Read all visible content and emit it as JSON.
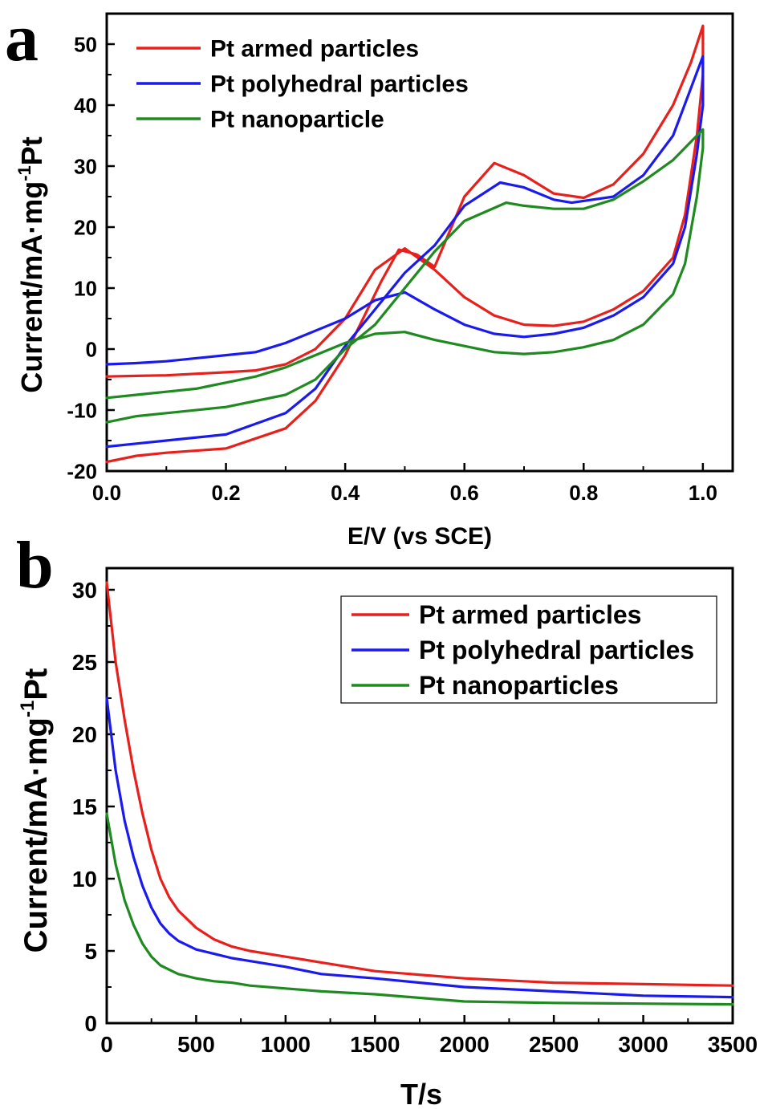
{
  "chart_data": [
    {
      "panel_label": "a",
      "type": "line",
      "xlabel": "E/V (vs SCE)",
      "ylabel": "Current/mA·mg",
      "ylabel_sup": "-1",
      "ylabel_tail": "Pt",
      "xlim": [
        0.0,
        1.05
      ],
      "ylim": [
        -20,
        55
      ],
      "x_ticks": [
        0.0,
        0.2,
        0.4,
        0.6,
        0.8,
        1.0
      ],
      "x_tick_labels": [
        "0.0",
        "0.2",
        "0.4",
        "0.6",
        "0.8",
        "1.0"
      ],
      "y_ticks": [
        -20,
        -10,
        0,
        10,
        20,
        30,
        40,
        50
      ],
      "y_tick_labels": [
        "-20",
        "-10",
        "0",
        "10",
        "20",
        "30",
        "40",
        "50"
      ],
      "legend_position": "top-left",
      "legend_box": false,
      "series": [
        {
          "name": "Pt armed particles",
          "color": "#e8201c",
          "x": [
            0.0,
            0.05,
            0.1,
            0.2,
            0.3,
            0.35,
            0.4,
            0.43,
            0.46,
            0.49,
            0.52,
            0.55,
            0.6,
            0.65,
            0.7,
            0.75,
            0.8,
            0.85,
            0.9,
            0.95,
            0.98,
            1.0,
            1.0,
            0.99,
            0.97,
            0.95,
            0.9,
            0.85,
            0.8,
            0.75,
            0.7,
            0.65,
            0.6,
            0.55,
            0.5,
            0.45,
            0.4,
            0.35,
            0.3,
            0.25,
            0.2,
            0.1,
            0.05,
            0.0
          ],
          "y": [
            -18.5,
            -17.5,
            -17.0,
            -16.3,
            -13.0,
            -8.5,
            -1.0,
            5.0,
            11.0,
            16.3,
            15.5,
            13.5,
            25.0,
            30.5,
            28.5,
            25.5,
            24.8,
            27.0,
            32.0,
            40.0,
            47.0,
            53.0,
            45.0,
            35.0,
            22.0,
            15.0,
            9.5,
            6.5,
            4.5,
            3.8,
            4.0,
            5.5,
            8.5,
            13.0,
            16.5,
            13.0,
            5.0,
            0.0,
            -2.5,
            -3.5,
            -3.8,
            -4.3,
            -4.4,
            -4.5
          ]
        },
        {
          "name": "Pt polyhedral particles",
          "color": "#1a1aee",
          "x": [
            0.0,
            0.05,
            0.1,
            0.2,
            0.3,
            0.35,
            0.4,
            0.45,
            0.5,
            0.55,
            0.6,
            0.66,
            0.7,
            0.75,
            0.78,
            0.85,
            0.9,
            0.95,
            1.0,
            1.0,
            0.99,
            0.97,
            0.95,
            0.9,
            0.85,
            0.8,
            0.75,
            0.7,
            0.65,
            0.6,
            0.55,
            0.5,
            0.45,
            0.4,
            0.35,
            0.3,
            0.25,
            0.2,
            0.1,
            0.05,
            0.0
          ],
          "y": [
            -16.0,
            -15.5,
            -15.0,
            -14.0,
            -10.5,
            -6.5,
            0.5,
            6.5,
            12.5,
            17.0,
            23.5,
            27.3,
            26.5,
            24.5,
            24.0,
            25.0,
            28.5,
            35.0,
            48.0,
            40.0,
            32.0,
            20.0,
            14.0,
            8.5,
            5.5,
            3.5,
            2.5,
            2.0,
            2.5,
            4.0,
            6.5,
            9.3,
            8.0,
            5.0,
            3.0,
            1.0,
            -0.5,
            -1.0,
            -2.0,
            -2.3,
            -2.5
          ]
        },
        {
          "name": "Pt nanoparticle",
          "color": "#1f8a1f",
          "x": [
            0.0,
            0.05,
            0.1,
            0.2,
            0.3,
            0.35,
            0.4,
            0.45,
            0.5,
            0.55,
            0.6,
            0.67,
            0.7,
            0.75,
            0.8,
            0.85,
            0.9,
            0.95,
            1.0,
            1.0,
            0.99,
            0.97,
            0.95,
            0.9,
            0.85,
            0.8,
            0.75,
            0.7,
            0.65,
            0.6,
            0.55,
            0.5,
            0.45,
            0.4,
            0.35,
            0.3,
            0.25,
            0.2,
            0.15,
            0.1,
            0.05,
            0.0
          ],
          "y": [
            -12.0,
            -11.0,
            -10.5,
            -9.5,
            -7.5,
            -5.0,
            0.0,
            4.0,
            10.0,
            16.0,
            21.0,
            24.0,
            23.5,
            23.0,
            23.0,
            24.5,
            27.5,
            31.0,
            36.0,
            33.0,
            25.0,
            14.0,
            9.0,
            4.0,
            1.5,
            0.3,
            -0.5,
            -0.8,
            -0.5,
            0.5,
            1.5,
            2.8,
            2.5,
            1.0,
            -1.0,
            -3.0,
            -4.5,
            -5.5,
            -6.5,
            -7.0,
            -7.5,
            -8.0
          ]
        }
      ]
    },
    {
      "panel_label": "b",
      "type": "line",
      "xlabel": "T/s",
      "ylabel": "Current/mA·mg",
      "ylabel_sup": "-1",
      "ylabel_tail": "Pt",
      "xlim": [
        0,
        3500
      ],
      "ylim": [
        0,
        31.5
      ],
      "x_ticks": [
        0,
        500,
        1000,
        1500,
        2000,
        2500,
        3000,
        3500
      ],
      "x_tick_labels": [
        "0",
        "500",
        "1000",
        "1500",
        "2000",
        "2500",
        "3000",
        "3500"
      ],
      "y_ticks": [
        0,
        5,
        10,
        15,
        20,
        25,
        30
      ],
      "y_tick_labels": [
        "0",
        "5",
        "10",
        "15",
        "20",
        "25",
        "30"
      ],
      "legend_position": "top-right",
      "legend_box": true,
      "series": [
        {
          "name": "Pt armed particles",
          "color": "#e8201c",
          "x": [
            0,
            50,
            100,
            150,
            200,
            250,
            300,
            350,
            400,
            500,
            600,
            700,
            800,
            1000,
            1200,
            1500,
            2000,
            2500,
            3000,
            3500
          ],
          "y": [
            30.5,
            25.0,
            21.0,
            17.5,
            14.5,
            12.0,
            10.0,
            8.7,
            7.8,
            6.6,
            5.8,
            5.3,
            5.0,
            4.6,
            4.2,
            3.6,
            3.1,
            2.8,
            2.7,
            2.6
          ]
        },
        {
          "name": "Pt polyhedral particles",
          "color": "#1a1aee",
          "x": [
            0,
            50,
            100,
            150,
            200,
            250,
            300,
            350,
            400,
            500,
            600,
            700,
            800,
            1000,
            1200,
            1500,
            2000,
            2500,
            3000,
            3500
          ],
          "y": [
            22.5,
            17.5,
            14.0,
            11.5,
            9.5,
            8.0,
            6.9,
            6.2,
            5.7,
            5.1,
            4.8,
            4.5,
            4.3,
            3.9,
            3.4,
            3.1,
            2.5,
            2.2,
            1.9,
            1.8
          ]
        },
        {
          "name": "Pt nanoparticles",
          "color": "#1f8a1f",
          "x": [
            0,
            50,
            100,
            150,
            200,
            250,
            300,
            350,
            400,
            500,
            600,
            700,
            800,
            1000,
            1200,
            1500,
            2000,
            2500,
            3000,
            3500
          ],
          "y": [
            14.5,
            11.0,
            8.5,
            6.8,
            5.5,
            4.6,
            4.0,
            3.7,
            3.4,
            3.1,
            2.9,
            2.8,
            2.6,
            2.4,
            2.2,
            2.0,
            1.5,
            1.4,
            1.35,
            1.3
          ]
        }
      ]
    }
  ]
}
